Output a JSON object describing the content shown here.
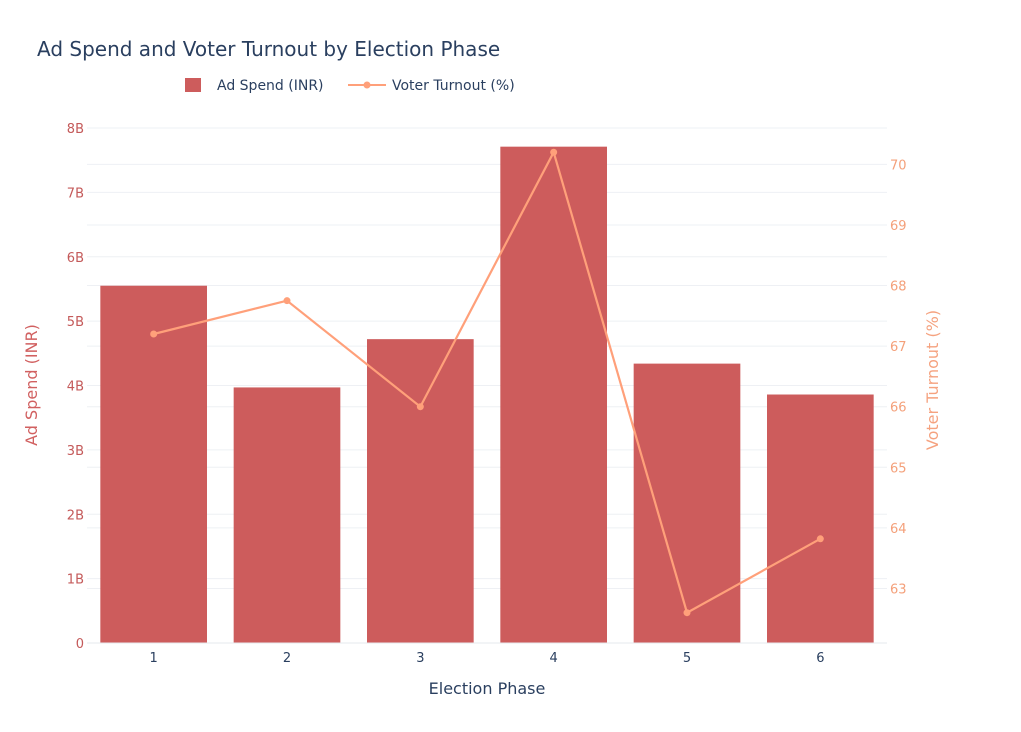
{
  "chart_data": {
    "type": "bar",
    "title": "Ad Spend and Voter Turnout by Election Phase",
    "xlabel": "Election Phase",
    "ylabel_left": "Ad Spend (INR)",
    "ylabel_right": "Voter Turnout (%)",
    "categories": [
      "1",
      "2",
      "3",
      "4",
      "5",
      "6"
    ],
    "series": [
      {
        "name": "Ad Spend (INR)",
        "type": "bar",
        "axis": "left",
        "color": "#cd5c5c",
        "values": [
          5550000000,
          3970000000,
          4720000000,
          7710000000,
          4340000000,
          3860000000
        ]
      },
      {
        "name": "Voter Turnout (%)",
        "type": "line",
        "axis": "right",
        "color": "#ffa07a",
        "values": [
          67.2,
          67.75,
          66.0,
          70.2,
          62.6,
          63.82
        ]
      }
    ],
    "ylim_left": [
      0,
      8000000000
    ],
    "yticks_left": [
      {
        "value": 0,
        "label": "0"
      },
      {
        "value": 1000000000,
        "label": "1B"
      },
      {
        "value": 2000000000,
        "label": "2B"
      },
      {
        "value": 3000000000,
        "label": "3B"
      },
      {
        "value": 4000000000,
        "label": "4B"
      },
      {
        "value": 5000000000,
        "label": "5B"
      },
      {
        "value": 6000000000,
        "label": "6B"
      },
      {
        "value": 7000000000,
        "label": "7B"
      },
      {
        "value": 8000000000,
        "label": "8B"
      }
    ],
    "ylim_right": [
      62.1,
      70.6
    ],
    "yticks_right": [
      {
        "value": 63,
        "label": "63"
      },
      {
        "value": 64,
        "label": "64"
      },
      {
        "value": 65,
        "label": "65"
      },
      {
        "value": 66,
        "label": "66"
      },
      {
        "value": 67,
        "label": "67"
      },
      {
        "value": 68,
        "label": "68"
      },
      {
        "value": 69,
        "label": "69"
      },
      {
        "value": 70,
        "label": "70"
      }
    ],
    "grid": true,
    "legend_position": "top-center"
  }
}
